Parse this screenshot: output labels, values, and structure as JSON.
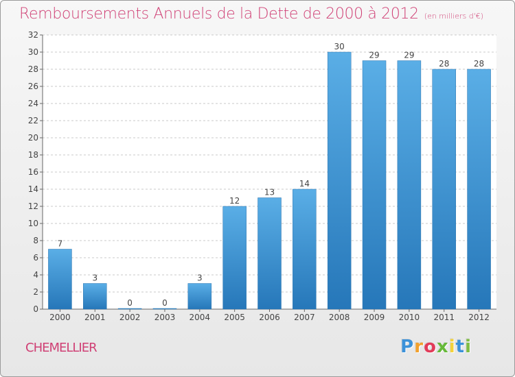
{
  "chart_data": {
    "type": "bar",
    "title": "Remboursements Annuels de la Dette de 2000 à 2012",
    "subtitle": "(en milliers d'€)",
    "categories": [
      "2000",
      "2001",
      "2002",
      "2003",
      "2004",
      "2005",
      "2006",
      "2007",
      "2008",
      "2009",
      "2010",
      "2011",
      "2012"
    ],
    "values": [
      7,
      3,
      0,
      0,
      3,
      12,
      13,
      14,
      30,
      29,
      29,
      28,
      28
    ],
    "ylim": [
      0,
      32
    ],
    "y_ticks": [
      0,
      2,
      4,
      6,
      8,
      10,
      12,
      14,
      16,
      18,
      20,
      22,
      24,
      26,
      28,
      30,
      32
    ],
    "xlabel": "",
    "ylabel": "",
    "grid": true,
    "grid_style": "dashed horizontal",
    "data_labels": true,
    "bar_color_top": "#5aaee6",
    "bar_color_bottom": "#2677b9"
  },
  "location": "CHEMELLIER",
  "brand": {
    "letters": [
      "P",
      "r",
      "o",
      "x",
      "i",
      "t",
      "i"
    ],
    "colors": [
      "#3c92d9",
      "#f2a12d",
      "#e23b59",
      "#66b93a",
      "#f3d23b",
      "#3c92d9",
      "#7fbd43"
    ]
  },
  "colors": {
    "title": "#cf3f74",
    "axis": "#666666",
    "grid": "#c9c9c9",
    "label": "#444444"
  }
}
